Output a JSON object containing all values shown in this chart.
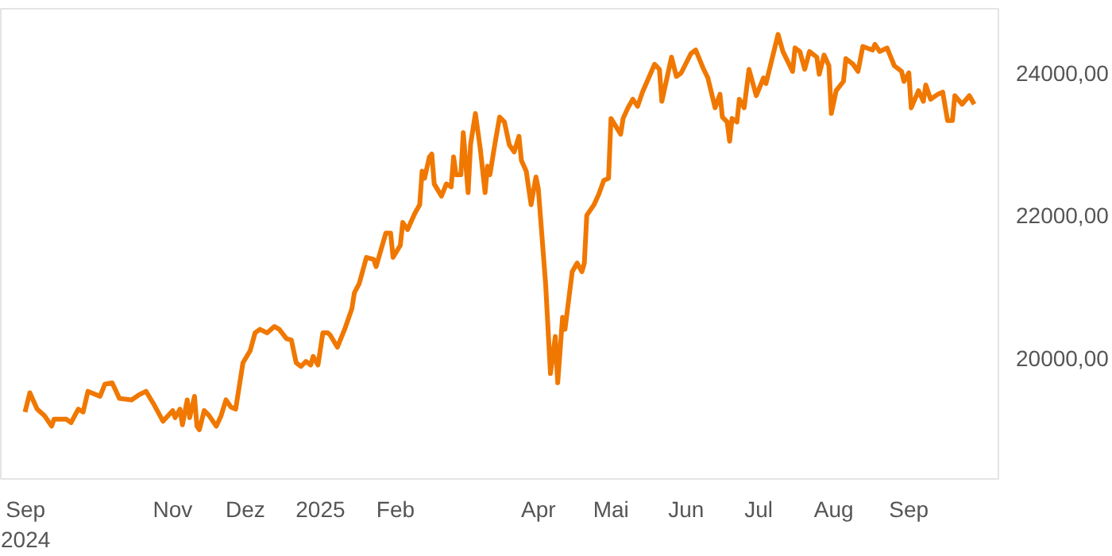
{
  "chart_data": {
    "type": "line",
    "xlim": [
      "2024-08-22",
      "2025-10-08"
    ],
    "ylim": [
      18300,
      24900
    ],
    "xticks": [
      {
        "value": "2024-09-01",
        "label": "Sep\n2024"
      },
      {
        "value": "2024-11-01",
        "label": "Nov"
      },
      {
        "value": "2024-12-01",
        "label": "Dez"
      },
      {
        "value": "2025-01-01",
        "label": "2025"
      },
      {
        "value": "2025-02-01",
        "label": "Feb"
      },
      {
        "value": "2025-04-01",
        "label": "Apr"
      },
      {
        "value": "2025-05-01",
        "label": "Mai"
      },
      {
        "value": "2025-06-01",
        "label": "Jun"
      },
      {
        "value": "2025-07-01",
        "label": "Jul"
      },
      {
        "value": "2025-08-01",
        "label": "Aug"
      },
      {
        "value": "2025-09-01",
        "label": "Sep"
      }
    ],
    "yticks": [
      {
        "value": 20000,
        "label": "20000,00"
      },
      {
        "value": 22000,
        "label": "22000,00"
      },
      {
        "value": 24000,
        "label": "24000,00"
      }
    ],
    "grid": false,
    "marker": "none",
    "line_style": "solid",
    "series": [
      {
        "color": "#f07800",
        "x": [
          "2024-09-01",
          "2024-09-03",
          "2024-09-06",
          "2024-09-09",
          "2024-09-12",
          "2024-09-13",
          "2024-09-18",
          "2024-09-20",
          "2024-09-23",
          "2024-09-25",
          "2024-09-27",
          "2024-10-02",
          "2024-10-04",
          "2024-10-07",
          "2024-10-10",
          "2024-10-15",
          "2024-10-18",
          "2024-10-21",
          "2024-10-24",
          "2024-10-28",
          "2024-11-01",
          "2024-11-02",
          "2024-11-04",
          "2024-11-05",
          "2024-11-07",
          "2024-11-08",
          "2024-11-10",
          "2024-11-11",
          "2024-11-12",
          "2024-11-14",
          "2024-11-16",
          "2024-11-19",
          "2024-11-21",
          "2024-11-23",
          "2024-11-25",
          "2024-11-27",
          "2024-11-30",
          "2024-12-03",
          "2024-12-05",
          "2024-12-07",
          "2024-12-10",
          "2024-12-13",
          "2024-12-15",
          "2024-12-18",
          "2024-12-20",
          "2024-12-22",
          "2024-12-24",
          "2024-12-26",
          "2024-12-28",
          "2024-12-29",
          "2024-12-31",
          "2025-01-02",
          "2025-01-04",
          "2025-01-05",
          "2025-01-08",
          "2025-01-11",
          "2025-01-14",
          "2025-01-15",
          "2025-01-17",
          "2025-01-20",
          "2025-01-23",
          "2025-01-24",
          "2025-01-28",
          "2025-01-30",
          "2025-01-31",
          "2025-02-03",
          "2025-02-04",
          "2025-02-06",
          "2025-02-09",
          "2025-02-11",
          "2025-02-12",
          "2025-02-13",
          "2025-02-15",
          "2025-02-16",
          "2025-02-17",
          "2025-02-20",
          "2025-02-22",
          "2025-02-24",
          "2025-02-25",
          "2025-02-26",
          "2025-02-28",
          "2025-03-01",
          "2025-03-03",
          "2025-03-04",
          "2025-03-06",
          "2025-03-08",
          "2025-03-10",
          "2025-03-11",
          "2025-03-12",
          "2025-03-14",
          "2025-03-16",
          "2025-03-18",
          "2025-03-20",
          "2025-03-22",
          "2025-03-24",
          "2025-03-25",
          "2025-03-27",
          "2025-03-29",
          "2025-03-31",
          "2025-04-01",
          "2025-04-04",
          "2025-04-06",
          "2025-04-08",
          "2025-04-09",
          "2025-04-11",
          "2025-04-12",
          "2025-04-15",
          "2025-04-17",
          "2025-04-19",
          "2025-04-20",
          "2025-04-21",
          "2025-04-24",
          "2025-04-26",
          "2025-04-28",
          "2025-04-30",
          "2025-05-01",
          "2025-05-05",
          "2025-05-06",
          "2025-05-08",
          "2025-05-10",
          "2025-05-12",
          "2025-05-14",
          "2025-05-19",
          "2025-05-21",
          "2025-05-22",
          "2025-05-26",
          "2025-05-28",
          "2025-05-30",
          "2025-06-03",
          "2025-06-05",
          "2025-06-08",
          "2025-06-10",
          "2025-06-13",
          "2025-06-15",
          "2025-06-16",
          "2025-06-18",
          "2025-06-19",
          "2025-06-20",
          "2025-06-22",
          "2025-06-23",
          "2025-06-25",
          "2025-06-27",
          "2025-06-30",
          "2025-07-03",
          "2025-07-04",
          "2025-07-09",
          "2025-07-11",
          "2025-07-15",
          "2025-07-16",
          "2025-07-18",
          "2025-07-20",
          "2025-07-22",
          "2025-07-25",
          "2025-07-26",
          "2025-07-28",
          "2025-07-30",
          "2025-07-31",
          "2025-08-02",
          "2025-08-05",
          "2025-08-06",
          "2025-08-09",
          "2025-08-11",
          "2025-08-13",
          "2025-08-17",
          "2025-08-18",
          "2025-08-20",
          "2025-08-23",
          "2025-08-26",
          "2025-08-29",
          "2025-08-30",
          "2025-09-01",
          "2025-09-02",
          "2025-09-05",
          "2025-09-07",
          "2025-09-08",
          "2025-09-10",
          "2025-09-13",
          "2025-09-15",
          "2025-09-17",
          "2025-09-19",
          "2025-09-20",
          "2025-09-23",
          "2025-09-26",
          "2025-09-28"
        ],
        "values": [
          19240,
          19510,
          19280,
          19190,
          19040,
          19140,
          19140,
          19090,
          19280,
          19240,
          19530,
          19460,
          19630,
          19650,
          19430,
          19410,
          19480,
          19530,
          19360,
          19110,
          19260,
          19160,
          19280,
          19060,
          19410,
          19160,
          19460,
          19040,
          18990,
          19260,
          19190,
          19040,
          19190,
          19410,
          19310,
          19280,
          19930,
          20100,
          20350,
          20400,
          20350,
          20440,
          20400,
          20270,
          20250,
          19930,
          19880,
          19950,
          19900,
          20020,
          19900,
          20350,
          20350,
          20320,
          20150,
          20400,
          20690,
          20910,
          21040,
          21410,
          21380,
          21280,
          21750,
          21750,
          21410,
          21580,
          21900,
          21800,
          22030,
          22150,
          22620,
          22520,
          22820,
          22860,
          22440,
          22270,
          22440,
          22400,
          22820,
          22570,
          22570,
          23160,
          22320,
          22990,
          23430,
          22940,
          22320,
          22690,
          22570,
          22990,
          23380,
          23310,
          22990,
          22890,
          23110,
          22770,
          22620,
          22150,
          22540,
          22370,
          21040,
          19780,
          20300,
          19650,
          20570,
          20400,
          21210,
          21330,
          21210,
          21330,
          22000,
          22150,
          22300,
          22490,
          22520,
          23360,
          23140,
          23360,
          23510,
          23630,
          23530,
          23730,
          24120,
          24050,
          23600,
          24220,
          23950,
          24000,
          24270,
          24320,
          24070,
          23930,
          23510,
          23700,
          23380,
          23310,
          23040,
          23360,
          23310,
          23630,
          23510,
          24050,
          23680,
          23930,
          23850,
          24540,
          24300,
          24020,
          24350,
          24300,
          24050,
          24300,
          24220,
          23980,
          24250,
          24100,
          23430,
          23750,
          23880,
          24200,
          24120,
          24020,
          24370,
          24320,
          24400,
          24300,
          24350,
          24100,
          24020,
          23880,
          24000,
          23510,
          23750,
          23600,
          23830,
          23630,
          23700,
          23730,
          23330,
          23330,
          23680,
          23560,
          23680,
          23560
        ]
      }
    ]
  }
}
